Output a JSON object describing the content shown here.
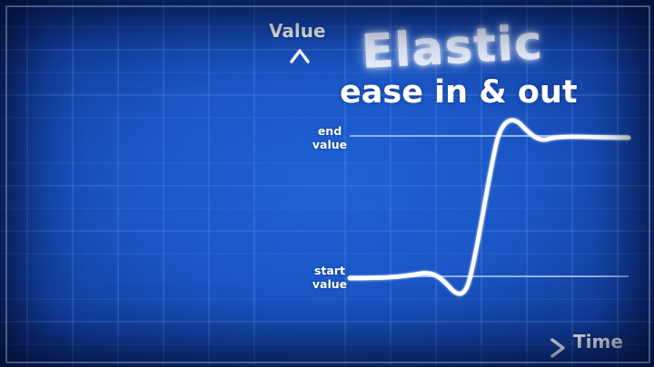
{
  "title": "Elastic",
  "subtitle": "ease in & out",
  "axes": {
    "y_label": "Value",
    "x_label": "Time"
  },
  "levels": {
    "end_label": "end\nvalue",
    "start_label": "start\nvalue"
  },
  "colors": {
    "background": "#1a55c4",
    "grid": "#6d96e0",
    "curve": "#ffffff",
    "axis": "#ffffff"
  }
}
